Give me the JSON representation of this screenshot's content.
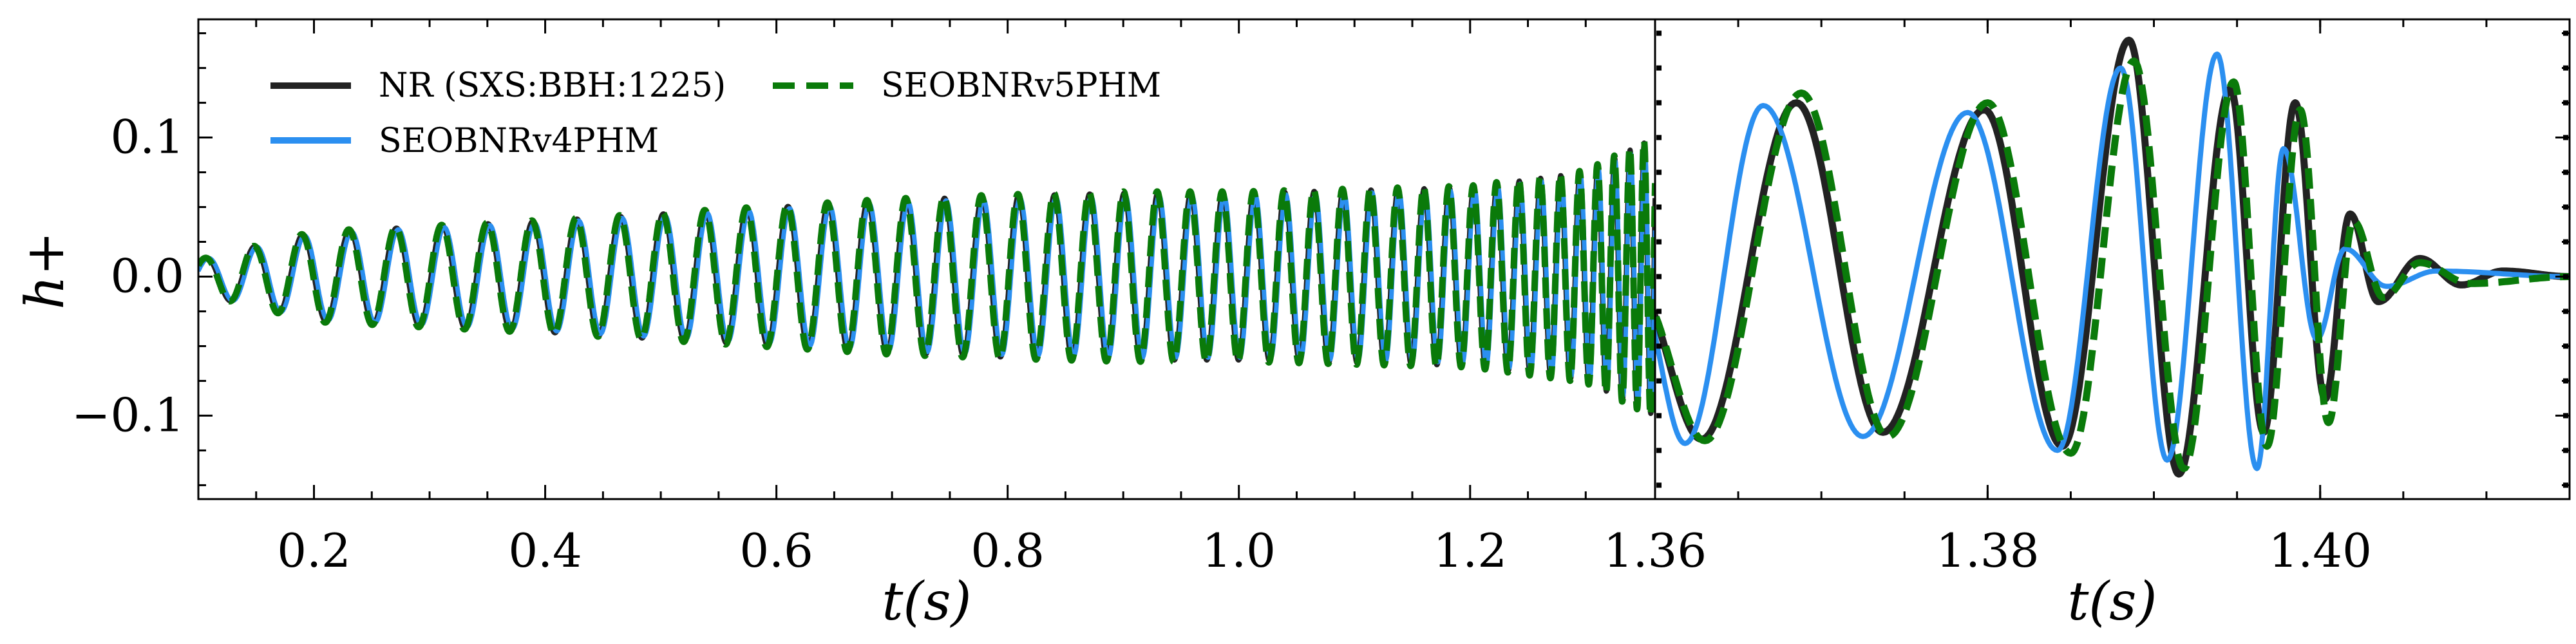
{
  "chart_data": [
    {
      "type": "line",
      "panel": "left",
      "xlabel": "t(s)",
      "ylabel": "h+",
      "xlim": [
        0.1,
        1.36
      ],
      "ylim": [
        -0.16,
        0.185
      ],
      "xticks": [
        0.2,
        0.4,
        0.6,
        0.8,
        1.0,
        1.2
      ],
      "xtick_labels": [
        "0.2",
        "0.4",
        "0.6",
        "0.8",
        "1.0",
        "1.2"
      ],
      "yticks": [
        -0.1,
        0.0,
        0.1
      ],
      "ytick_labels": [
        "−0.1",
        "0.0",
        "0.1"
      ],
      "legend_position": "top-left",
      "series": [
        {
          "name": "NR (SXS:BBH:1225)",
          "color": "#222222",
          "style": "solid"
        },
        {
          "name": "SEOBNRv4PHM",
          "color": "#2b8ff0",
          "style": "solid"
        },
        {
          "name": "SEOBNRv5PHM",
          "color": "#0a7a0a",
          "style": "dashed"
        }
      ],
      "waveform": {
        "t": [
          0.1,
          0.2,
          0.3,
          0.4,
          0.5,
          0.6,
          0.7,
          0.8,
          0.9,
          1.0,
          1.1,
          1.2,
          1.3,
          1.36
        ],
        "amplitude": [
          0.012,
          0.032,
          0.036,
          0.04,
          0.045,
          0.05,
          0.055,
          0.058,
          0.06,
          0.06,
          0.062,
          0.064,
          0.075,
          0.1
        ],
        "cycles_in_panel": 44
      }
    },
    {
      "type": "line",
      "panel": "right",
      "xlabel": "t(s)",
      "xlim": [
        1.36,
        1.415
      ],
      "ylim": [
        -0.16,
        0.185
      ],
      "xticks": [
        1.36,
        1.38,
        1.4
      ],
      "xtick_labels": [
        "1.36",
        "1.38",
        "1.40"
      ],
      "series": [
        {
          "name": "NR (SXS:BBH:1225)",
          "color": "#222222",
          "extrema": [
            [
              1.3628,
              -0.117
            ],
            [
              1.3685,
              0.125
            ],
            [
              1.3737,
              -0.112
            ],
            [
              1.3798,
              0.12
            ],
            [
              1.3845,
              -0.122
            ],
            [
              1.3885,
              0.17
            ],
            [
              1.3915,
              -0.142
            ],
            [
              1.3946,
              0.135
            ],
            [
              1.3966,
              -0.112
            ],
            [
              1.3985,
              0.125
            ],
            [
              1.4003,
              -0.088
            ],
            [
              1.4018,
              0.045
            ],
            [
              1.4035,
              -0.018
            ],
            [
              1.406,
              0.013
            ],
            [
              1.4085,
              -0.006
            ],
            [
              1.411,
              0.004
            ],
            [
              1.415,
              0.0
            ]
          ]
        },
        {
          "name": "SEOBNRv4PHM",
          "color": "#2b8ff0",
          "extrema": [
            [
              1.3618,
              -0.12
            ],
            [
              1.3665,
              0.123
            ],
            [
              1.3725,
              -0.115
            ],
            [
              1.3788,
              0.118
            ],
            [
              1.3842,
              -0.125
            ],
            [
              1.388,
              0.15
            ],
            [
              1.3908,
              -0.132
            ],
            [
              1.3938,
              0.16
            ],
            [
              1.3962,
              -0.138
            ],
            [
              1.3978,
              0.092
            ],
            [
              1.3998,
              -0.045
            ],
            [
              1.4015,
              0.02
            ],
            [
              1.404,
              -0.007
            ],
            [
              1.407,
              0.004
            ],
            [
              1.415,
              0.0
            ]
          ]
        },
        {
          "name": "SEOBNRv5PHM",
          "color": "#0a7a0a",
          "extrema": [
            [
              1.363,
              -0.118
            ],
            [
              1.3688,
              0.132
            ],
            [
              1.374,
              -0.115
            ],
            [
              1.38,
              0.125
            ],
            [
              1.385,
              -0.127
            ],
            [
              1.3888,
              0.155
            ],
            [
              1.3918,
              -0.138
            ],
            [
              1.3948,
              0.14
            ],
            [
              1.3968,
              -0.122
            ],
            [
              1.3988,
              0.12
            ],
            [
              1.4005,
              -0.105
            ],
            [
              1.402,
              0.04
            ],
            [
              1.4038,
              -0.015
            ],
            [
              1.406,
              0.01
            ],
            [
              1.409,
              -0.005
            ],
            [
              1.415,
              0.0
            ]
          ]
        }
      ]
    }
  ]
}
